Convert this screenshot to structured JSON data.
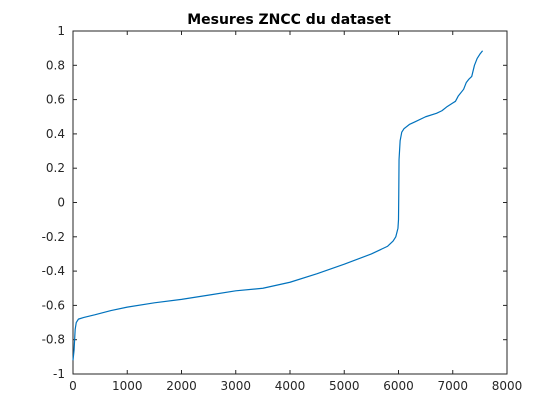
{
  "chart_data": {
    "type": "line",
    "title": "Mesures ZNCC du dataset",
    "xlabel": "",
    "ylabel": "",
    "xlim": [
      0,
      8000
    ],
    "ylim": [
      -1,
      1
    ],
    "xticks": [
      0,
      1000,
      2000,
      3000,
      4000,
      5000,
      6000,
      7000,
      8000
    ],
    "yticks": [
      -1,
      -0.8,
      -0.6,
      -0.4,
      -0.2,
      0,
      0.2,
      0.4,
      0.6,
      0.8,
      1
    ],
    "grid": false,
    "series": [
      {
        "name": "ZNCC",
        "color": "#0072bd",
        "x": [
          0,
          20,
          40,
          60,
          100,
          200,
          400,
          700,
          1000,
          1500,
          2000,
          2500,
          3000,
          3500,
          4000,
          4500,
          5000,
          5500,
          5800,
          5900,
          5950,
          5990,
          6000,
          6005,
          6010,
          6030,
          6060,
          6100,
          6200,
          6300,
          6500,
          6700,
          6800,
          6900,
          7000,
          7050,
          7100,
          7200,
          7250,
          7300,
          7350,
          7400,
          7450,
          7500,
          7550
        ],
        "values": [
          -0.92,
          -0.86,
          -0.74,
          -0.7,
          -0.68,
          -0.67,
          -0.655,
          -0.63,
          -0.61,
          -0.585,
          -0.565,
          -0.54,
          -0.515,
          -0.5,
          -0.465,
          -0.415,
          -0.36,
          -0.3,
          -0.255,
          -0.225,
          -0.2,
          -0.15,
          -0.1,
          0.05,
          0.25,
          0.36,
          0.41,
          0.43,
          0.455,
          0.47,
          0.5,
          0.52,
          0.535,
          0.56,
          0.58,
          0.59,
          0.62,
          0.66,
          0.7,
          0.72,
          0.735,
          0.8,
          0.84,
          0.865,
          0.885
        ]
      }
    ]
  }
}
